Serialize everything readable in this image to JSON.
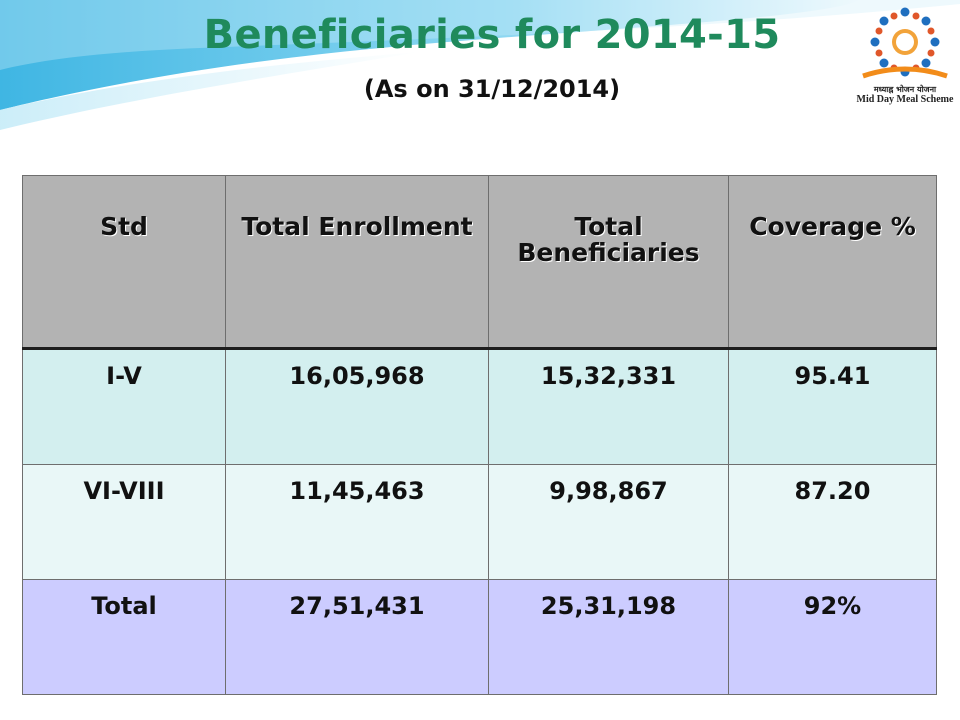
{
  "slide": {
    "title": "Beneficiaries for 2014-15",
    "subtitle": "(As on 31/12/2014)",
    "colors": {
      "title": "#1f8a5c",
      "header_bg": "#b3b3b3",
      "row1_bg": "#d3efef",
      "row2_bg": "#e9f7f7",
      "total_bg": "#ccccff"
    }
  },
  "logo": {
    "caption_hindi": "मध्याह्न भोजन योजना",
    "caption_en": "Mid Day Meal Scheme"
  },
  "table": {
    "headers": [
      "Std",
      "Total Enrollment",
      "Total Beneficiaries",
      "Coverage %"
    ],
    "rows": [
      [
        "I-V",
        "16,05,968",
        "15,32,331",
        "95.41"
      ],
      [
        "VI-VIII",
        "11,45,463",
        "9,98,867",
        "87.20"
      ],
      [
        "Total",
        "27,51,431",
        "25,31,198",
        "92%"
      ]
    ]
  }
}
